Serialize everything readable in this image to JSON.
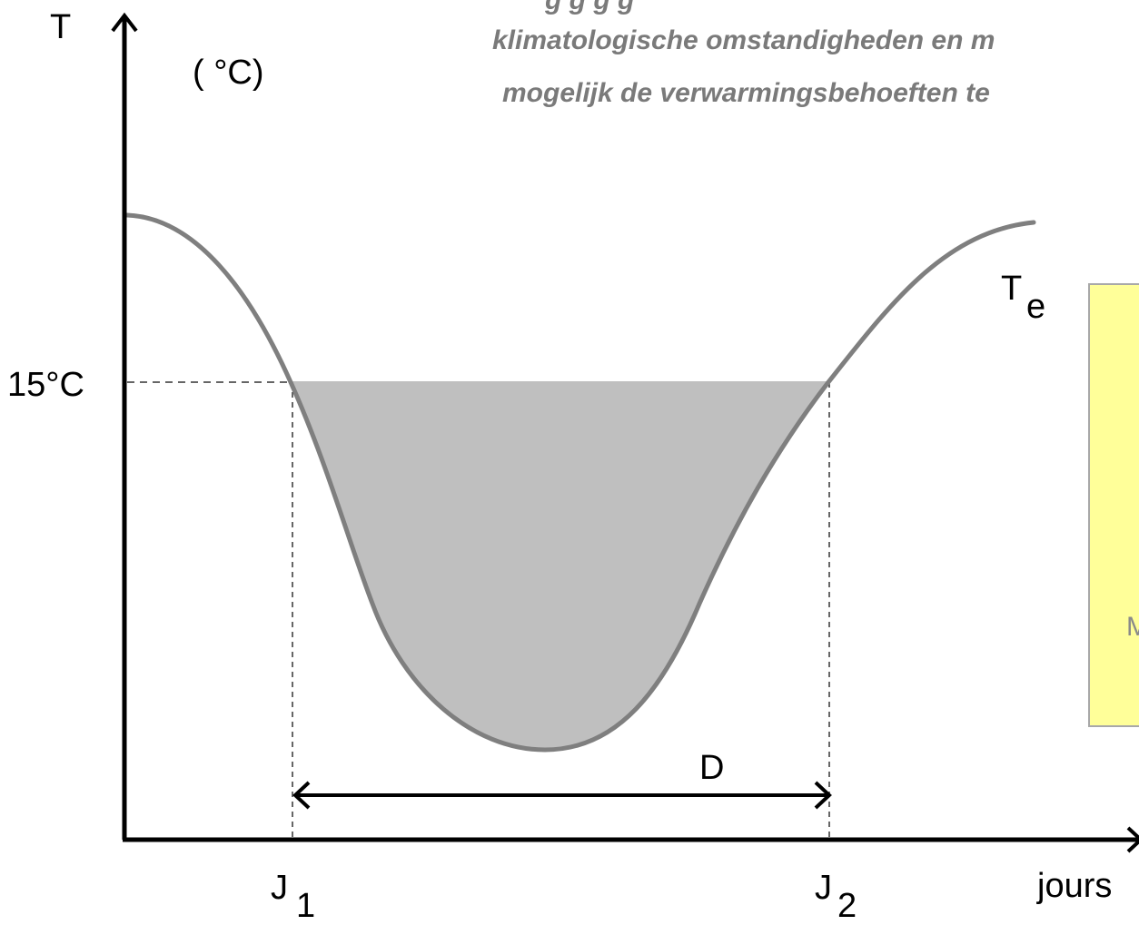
{
  "overlay_text": {
    "line1": "g g g g",
    "line2": "klimatologische omstandigheden en m",
    "line3": "mogelijk de verwarmingsbehoeften te"
  },
  "axes": {
    "y_symbol": "T",
    "y_unit": "( °C)",
    "x_label": "jours"
  },
  "markers": {
    "threshold_label": "15°C",
    "j1_main": "J",
    "j1_sub": "1",
    "j2_main": "J",
    "j2_sub": "2",
    "duration_label": "D"
  },
  "curve": {
    "label_main": "T",
    "label_sub": "e"
  },
  "side_note": {
    "partial_text": "M"
  },
  "colors": {
    "curve": "#7f7f7f",
    "shaded_area": "#bfbfbf",
    "side_box_fill": "#ffff99",
    "side_box_border": "#a8a8a8"
  }
}
